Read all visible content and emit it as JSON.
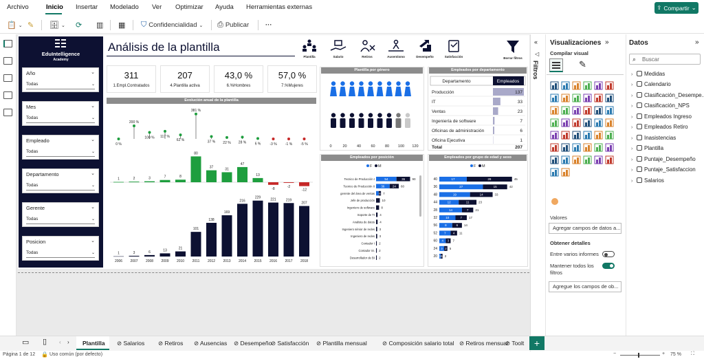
{
  "menu": {
    "items": [
      "Archivo",
      "Inicio",
      "Insertar",
      "Modelado",
      "Ver",
      "Optimizar",
      "Ayuda",
      "Herramientas externas"
    ],
    "share": "Compartir"
  },
  "toolbar": {
    "confidencialidad": "Confidencialidad",
    "publicar": "Publicar",
    "more": "···"
  },
  "report": {
    "logo_name": "EduIntelligence",
    "logo_sub": "Academy",
    "title": "Análisis de la plantilla",
    "header_icons": [
      {
        "name": "plantilla-icon",
        "label": "Plantilla"
      },
      {
        "name": "salario-icon",
        "label": "Salario"
      },
      {
        "name": "retiros-icon",
        "label": "Retiros"
      },
      {
        "name": "ausentismo-icon",
        "label": "Ausentismo"
      },
      {
        "name": "desempeno-icon",
        "label": "Desempeño"
      },
      {
        "name": "satisfaccion-icon",
        "label": "Satisfacción"
      },
      {
        "name": "borrar-filtros-icon",
        "label": "Borrar filtros"
      }
    ],
    "slicers": [
      {
        "label": "Año",
        "value": "Todas"
      },
      {
        "label": "Mes",
        "value": "Todas"
      },
      {
        "label": "Empleado",
        "value": "Todas"
      },
      {
        "label": "Departamento",
        "value": "Todas"
      },
      {
        "label": "Gerente",
        "value": "Todas"
      },
      {
        "label": "Posicion",
        "value": "Todas"
      }
    ],
    "kpis": [
      {
        "value": "311",
        "label": "1.Empl.Contratados"
      },
      {
        "value": "207",
        "label": "4.Plantilla activa"
      },
      {
        "value": "43,0 %",
        "label": "6.%Hombres"
      },
      {
        "value": "57,0 %",
        "label": "7.%Mujeres"
      }
    ],
    "panel_titles": {
      "evolucion": "Evolución anual de la plantilla",
      "genero": "Plantilla por género",
      "departamento": "Empleados por departamento",
      "posicion": "Empleados por posición",
      "edad": "Empleados por grupo de edad y sexo"
    },
    "dept_table": {
      "headers": [
        "Departamento",
        "Empleados"
      ],
      "rows": [
        [
          "Producción",
          "137"
        ],
        [
          "IT",
          "33"
        ],
        [
          "Ventas",
          "23"
        ],
        [
          "Ingeniería de software",
          "7"
        ],
        [
          "Oficinas de administración",
          "6"
        ],
        [
          "Oficina Ejecutiva",
          "1"
        ]
      ],
      "total": [
        "Total",
        "207"
      ]
    },
    "legend": {
      "f": "F",
      "m": "M"
    }
  },
  "colors": {
    "navy": "#0d1132",
    "green": "#1e9e3e",
    "red": "#c62828",
    "blue": "#1a6fe6",
    "teal": "#117865",
    "gray": "#c9c9c9"
  },
  "chart_data": [
    {
      "type": "line",
      "title": "Evolución anual de la plantilla",
      "x": [
        "2006",
        "2007",
        "2008",
        "2009",
        "2010",
        "2011",
        "2012",
        "2013",
        "2014",
        "2015",
        "2016",
        "2017",
        "2018"
      ],
      "series": [
        {
          "values_label": [
            "0 %",
            "200 %",
            "100 %",
            "117 %",
            "62 %",
            "381 %",
            "37 %",
            "22 %",
            "28 %",
            "6 %",
            "-3 %",
            "-1 %",
            "-5 %"
          ],
          "values": [
            0,
            200,
            100,
            117,
            62,
            381,
            37,
            22,
            28,
            6,
            -3,
            -1,
            -5
          ]
        }
      ]
    },
    {
      "type": "bar",
      "x": [
        "2006",
        "2007",
        "2008",
        "2009",
        "2010",
        "2011",
        "2012",
        "2013",
        "2014",
        "2015",
        "2016",
        "2017",
        "2018"
      ],
      "series": [
        {
          "values": [
            1,
            2,
            3,
            7,
            8,
            80,
            37,
            31,
            47,
            13,
            -8,
            -2,
            -12
          ]
        }
      ]
    },
    {
      "type": "bar",
      "x": [
        "2006",
        "2007",
        "2008",
        "2009",
        "2010",
        "2011",
        "2012",
        "2013",
        "2014",
        "2015",
        "2016",
        "2017",
        "2018"
      ],
      "series": [
        {
          "values": [
            1,
            3,
            6,
            13,
            21,
            101,
            138,
            169,
            216,
            229,
            221,
            219,
            207
          ]
        }
      ]
    },
    {
      "type": "bar",
      "title": "Plantilla por género",
      "x_ticks": [
        "0",
        "20",
        "40",
        "60",
        "80",
        "100",
        "120"
      ],
      "series": [
        {
          "name": "F",
          "values": [
            118
          ]
        },
        {
          "name": "M",
          "values": [
            89
          ]
        }
      ]
    },
    {
      "type": "bar",
      "title": "Empleados por posición",
      "categories": [
        "Tecnico de Producción I",
        "Tecnico de Producción II",
        "gerente del área de ventas",
        "Jefe de producción",
        "Ingeniero de software",
        "Soporte de TI",
        "Analista de datos",
        "Ingeniero sénior de redes",
        "Ingeniero de redes",
        "Contador I",
        "Contador Sr.",
        "Desarrollador de BI"
      ],
      "series": [
        {
          "name": "F",
          "values": [
            54,
            36,
            7,
            0,
            0,
            0,
            0,
            0,
            0,
            0,
            0,
            0
          ]
        },
        {
          "name": "M",
          "values": [
            36,
            24,
            6,
            10,
            8,
            4,
            4,
            3,
            3,
            2,
            2,
            2
          ]
        }
      ],
      "value_labels": [
        [
          "54",
          "36",
          "90"
        ],
        [
          "36",
          "24",
          "60"
        ],
        [
          "6",
          "7"
        ],
        [
          "10"
        ],
        [
          "8"
        ],
        [
          "4"
        ],
        [
          "4"
        ],
        [
          "3"
        ],
        [
          "3"
        ],
        [
          "2"
        ],
        [
          "2"
        ],
        [
          "2"
        ]
      ]
    },
    {
      "type": "bar",
      "title": "Empleados por grupo de edad y sexo",
      "categories": [
        "40",
        "36",
        "48",
        "44",
        "28",
        "32",
        "56",
        "52",
        "60",
        "24",
        "20"
      ],
      "series": [
        {
          "name": "F",
          "values": [
            17,
            27,
            19,
            12,
            14,
            10,
            8,
            7,
            4,
            3,
            1
          ]
        },
        {
          "name": "M",
          "values": [
            28,
            15,
            14,
            11,
            7,
            7,
            6,
            4,
            3,
            2,
            1
          ]
        }
      ],
      "value_labels": [
        [
          "17",
          "28",
          "45"
        ],
        [
          "27",
          "15",
          "42"
        ],
        [
          "19",
          "14",
          "33"
        ],
        [
          "12",
          "11",
          "23"
        ],
        [
          "14",
          "7",
          "21"
        ],
        [
          "10",
          "7",
          "17"
        ],
        [
          "8",
          "6",
          "14"
        ],
        [
          "7",
          "4",
          "11"
        ],
        [
          "4",
          "3",
          "7"
        ],
        [
          "3",
          "2",
          "5"
        ],
        [
          "1",
          "1",
          "2"
        ]
      ]
    }
  ],
  "viz": {
    "title": "Visualizaciones",
    "build": "Compilar visual",
    "valores": "Valores",
    "add_values": "Agregar campos de datos a...",
    "details": "Obtener detalles",
    "cross_report": "Entre varios informes",
    "keep_filters": "Mantener todos los filtros",
    "add_drill": "Agregue los campos de ob...",
    "filters_tab": "Filtros"
  },
  "data_pane": {
    "title": "Datos",
    "search_placeholder": "Buscar",
    "fields": [
      "Medidas",
      "Calendario",
      "Clasificación_Desempe...",
      "Clasificación_NPS",
      "Empleados Ingreso",
      "Empleados Retiro",
      "Inasistencias",
      "Plantilla",
      "Puntaje_Desempeño",
      "Puntaje_Satisfaccion",
      "Salarios"
    ]
  },
  "tabs": [
    "Plantilla",
    "Salarios",
    "Retiros",
    "Ausencias",
    "Desempeño",
    "Satisfacción",
    "Plantilla mensual",
    "Composición salario total",
    "Retiros mensual",
    "Toolt"
  ],
  "status": {
    "page": "Página 1 de 12",
    "usage": "Uso común (por defecto)",
    "zoom": "75 %"
  }
}
